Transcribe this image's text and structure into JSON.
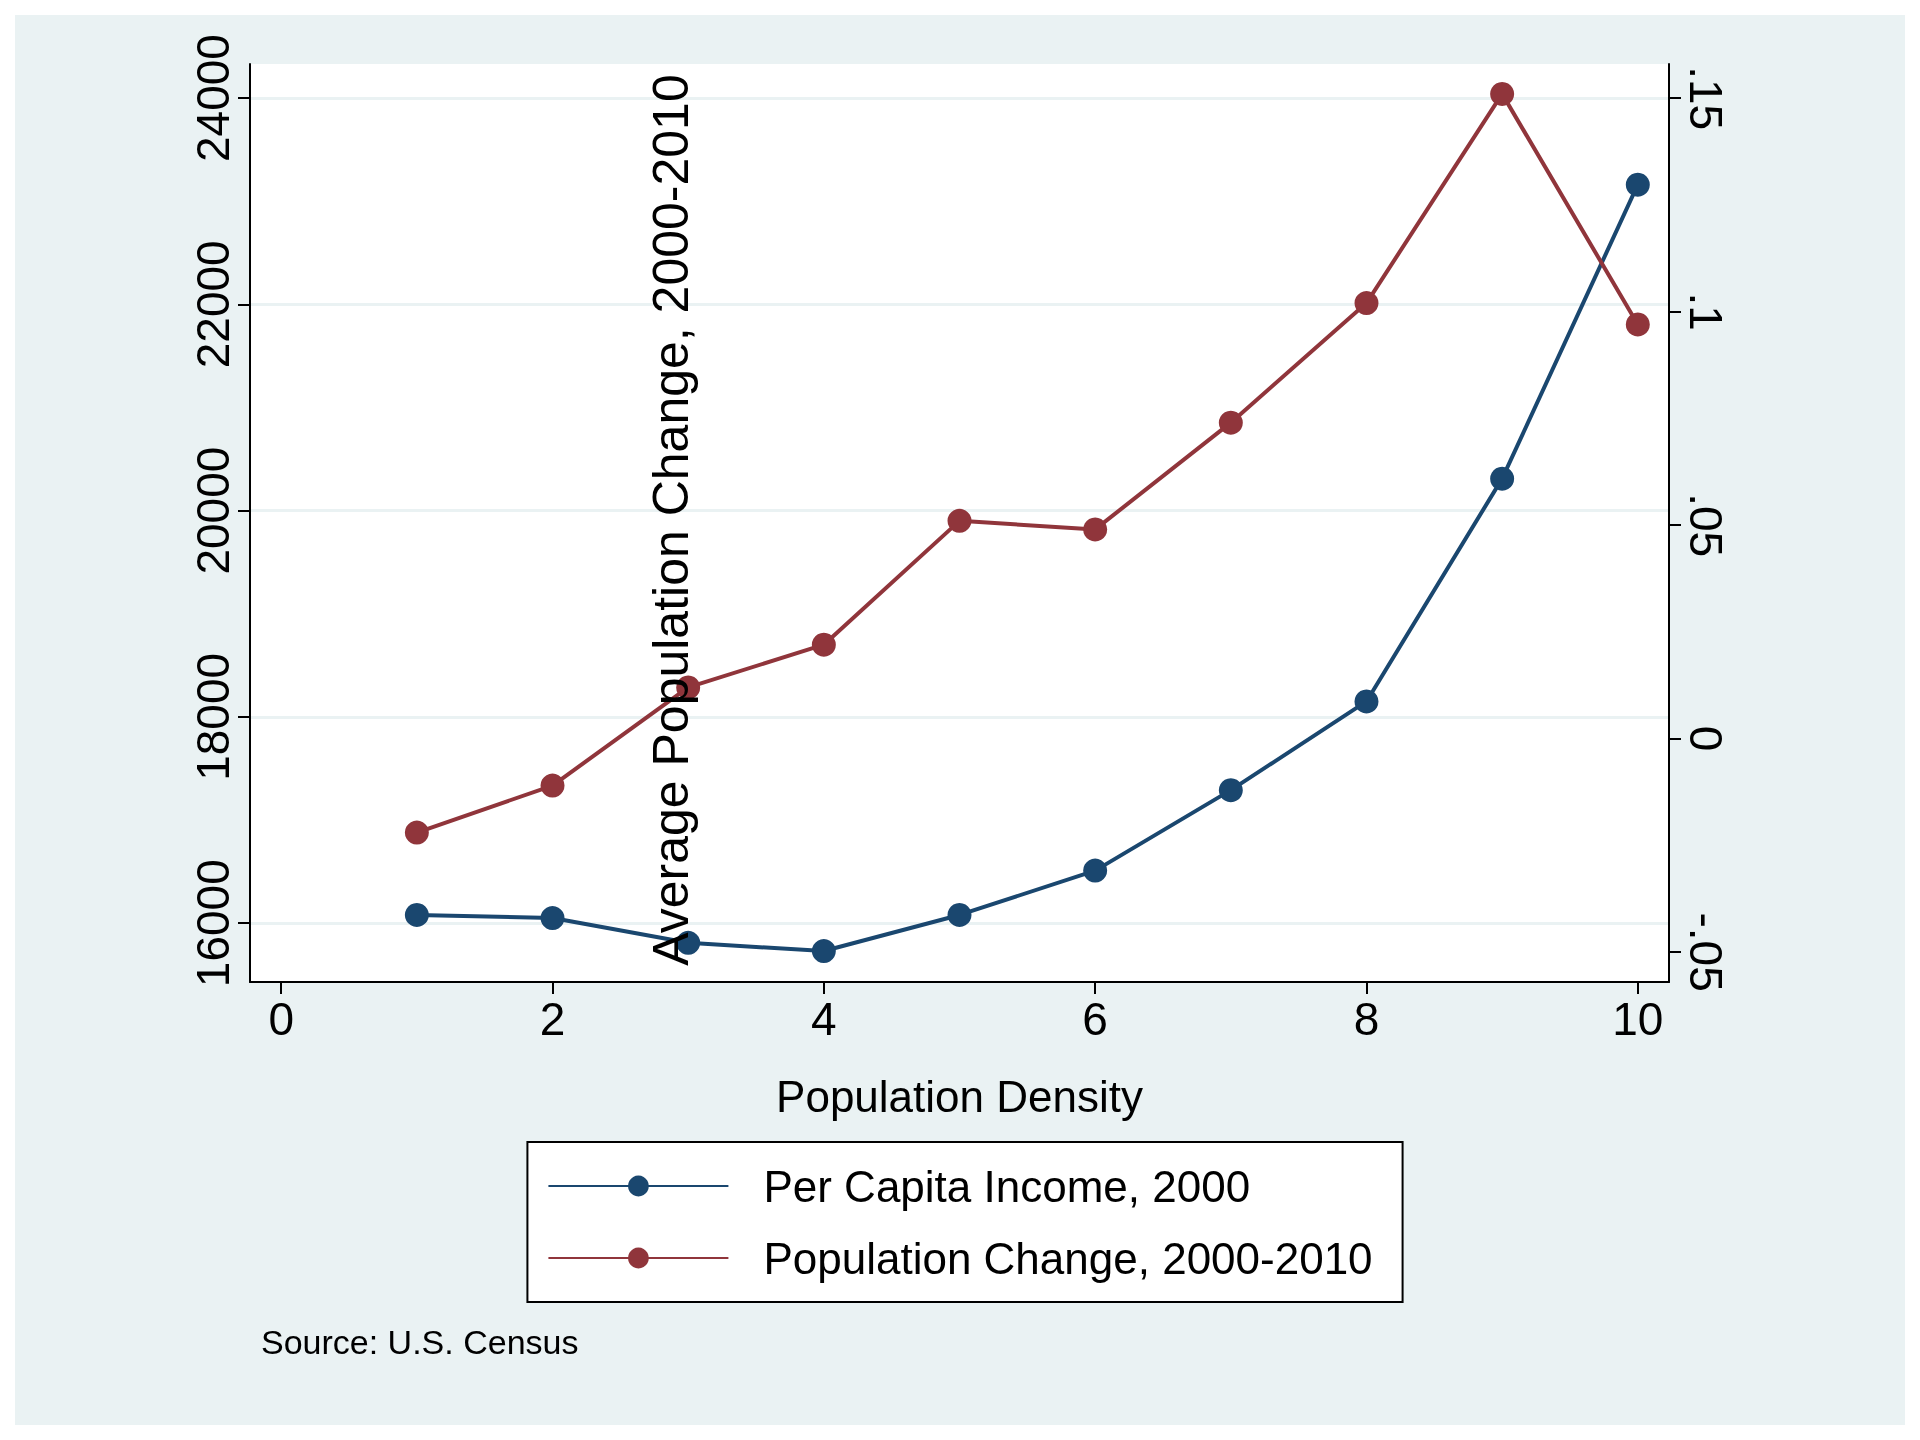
{
  "chart_data": {
    "type": "line",
    "xlabel": "Population Density",
    "x": [
      1,
      2,
      3,
      4,
      5,
      6,
      7,
      8,
      9,
      10
    ],
    "series": [
      {
        "name": "Per Capita Income, 2000",
        "color": "#1a476f",
        "values": [
          16080,
          16050,
          15810,
          15730,
          16080,
          16510,
          17290,
          18150,
          20310,
          23160
        ]
      },
      {
        "name": "Population Change, 2000-2010",
        "color": "#90353b",
        "axis": "y2",
        "values": [
          -0.022,
          -0.011,
          0.012,
          0.022,
          0.051,
          0.049,
          0.074,
          0.102,
          0.151,
          0.097
        ]
      }
    ],
    "xlim": [
      -0.23,
      10.23
    ],
    "xticks": [
      0,
      2,
      4,
      6,
      8,
      10
    ],
    "ylim": [
      15430,
      24330
    ],
    "yticks": [
      16000,
      18000,
      20000,
      22000,
      24000
    ],
    "y2lim": [
      -0.057,
      0.158
    ],
    "y2ticks": [
      {
        "value": -0.05,
        "label": "-.05"
      },
      {
        "value": 0,
        "label": "0"
      },
      {
        "value": 0.05,
        "label": ".05"
      },
      {
        "value": 0.1,
        "label": ".1"
      },
      {
        "value": 0.15,
        "label": ".15"
      }
    ],
    "grid": "y",
    "legend": "bottom",
    "marker": "circle",
    "line_style": "solid",
    "annotations": [
      "Average Population Change, 2000-2010",
      "Source: U.S. Census"
    ]
  }
}
